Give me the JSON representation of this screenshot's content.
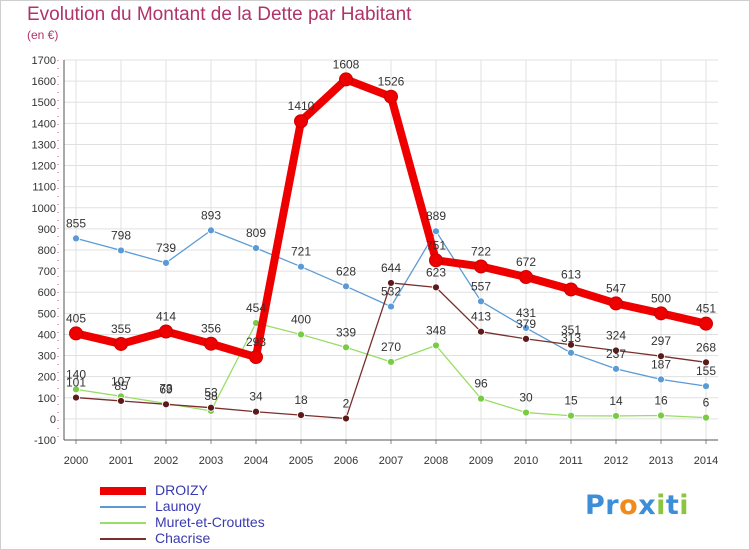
{
  "title": "Evolution du Montant de la Dette par Habitant",
  "subtitle": "(en €)",
  "logo": {
    "text": "Proxiti",
    "letters": [
      {
        "ch": "P",
        "color": "#3d8ed8"
      },
      {
        "ch": "r",
        "color": "#3d8ed8"
      },
      {
        "ch": "o",
        "color": "#f08a1c"
      },
      {
        "ch": "x",
        "color": "#3d8ed8"
      },
      {
        "ch": "i",
        "color": "#8cc63f"
      },
      {
        "ch": "t",
        "color": "#3d8ed8"
      },
      {
        "ch": "i",
        "color": "#8cc63f"
      }
    ]
  },
  "chart_data": {
    "type": "line",
    "title": "Evolution du Montant de la Dette par Habitant",
    "subtitle": "(en €)",
    "x": [
      "2000",
      "2001",
      "2002",
      "2003",
      "2004",
      "2005",
      "2006",
      "2007",
      "2008",
      "2009",
      "2010",
      "2011",
      "2012",
      "2013",
      "2014"
    ],
    "ylim": [
      -100,
      1700
    ],
    "yticks": [
      -100,
      0,
      100,
      200,
      300,
      400,
      500,
      600,
      700,
      800,
      900,
      1000,
      1100,
      1200,
      1300,
      1400,
      1500,
      1600,
      1700
    ],
    "grid": true,
    "legend_position": "bottom-left",
    "series": [
      {
        "name": "DROIZY",
        "color": "#ee0000",
        "marker": "#ee0000",
        "emphasis": true,
        "values": [
          405,
          355,
          414,
          356,
          293,
          1410,
          1608,
          1526,
          751,
          722,
          672,
          613,
          547,
          500,
          451
        ]
      },
      {
        "name": "Launoy",
        "color": "#5b9bd5",
        "marker": "#5b9bd5",
        "emphasis": false,
        "values": [
          855,
          798,
          739,
          893,
          809,
          721,
          628,
          532,
          889,
          557,
          431,
          313,
          237,
          187,
          155
        ]
      },
      {
        "name": "Muret-et-Crouttes",
        "color": "#99dd66",
        "marker": "#77cc44",
        "emphasis": false,
        "values": [
          140,
          107,
          73,
          38,
          454,
          400,
          339,
          270,
          348,
          96,
          30,
          15,
          14,
          16,
          6
        ]
      },
      {
        "name": "Chacrise",
        "color": "#7a2e2e",
        "marker": "#5c1a1a",
        "emphasis": false,
        "values": [
          101,
          85,
          69,
          53,
          34,
          18,
          2,
          644,
          623,
          413,
          379,
          351,
          324,
          297,
          268
        ]
      }
    ]
  }
}
